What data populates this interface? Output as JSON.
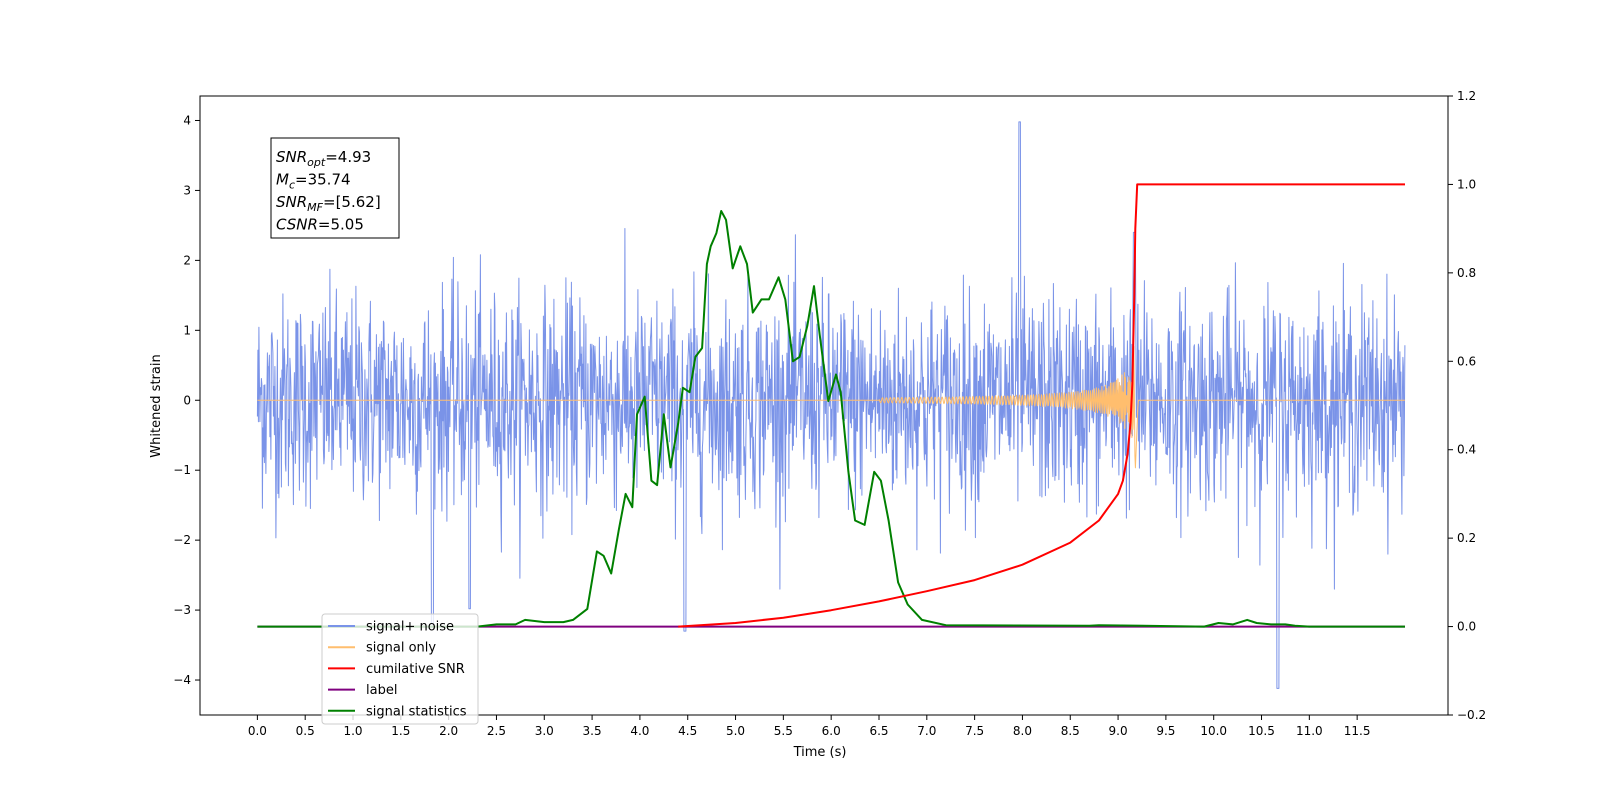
{
  "chart_data": {
    "type": "line",
    "title": "",
    "xlabel": "Time (s)",
    "ylabel": "Whitened strain",
    "y2label": "",
    "xlim": [
      -0.6,
      12.45
    ],
    "ylim": [
      -4.5,
      4.35
    ],
    "y2lim": [
      -0.2,
      1.2
    ],
    "x_ticks": [
      0.0,
      0.5,
      1.0,
      1.5,
      2.0,
      2.5,
      3.0,
      3.5,
      4.0,
      4.5,
      5.0,
      5.5,
      6.0,
      6.5,
      7.0,
      7.5,
      8.0,
      8.5,
      9.0,
      9.5,
      10.0,
      10.5,
      11.0,
      11.5
    ],
    "x_tick_labels": [
      "0.0",
      "0.5",
      "1.0",
      "1.5",
      "2.0",
      "2.5",
      "3.0",
      "3.5",
      "4.0",
      "4.5",
      "5.0",
      "5.5",
      "6.0",
      "6.5",
      "7.0",
      "7.5",
      "8.0",
      "8.5",
      "9.0",
      "9.5",
      "10.0",
      "10.5",
      "11.0",
      "11.5"
    ],
    "y_ticks": [
      -4,
      -3,
      -2,
      -1,
      0,
      1,
      2,
      3,
      4
    ],
    "y_tick_labels": [
      "−4",
      "−3",
      "−2",
      "−1",
      "0",
      "1",
      "2",
      "3",
      "4"
    ],
    "y2_ticks": [
      -0.2,
      0.0,
      0.2,
      0.4,
      0.6,
      0.8,
      1.0,
      1.2
    ],
    "y2_tick_labels": [
      "−0.2",
      "0.0",
      "0.2",
      "0.4",
      "0.6",
      "0.8",
      "1.0",
      "1.2"
    ],
    "grid": false,
    "legend_position": "lower-left",
    "legend": [
      {
        "label": "signal+ noise",
        "color": "#7a93e8"
      },
      {
        "label": "signal only",
        "color": "#ffbe6e"
      },
      {
        "label": "cumilative SNR",
        "color": "#ff0000"
      },
      {
        "label": "label",
        "color": "#7f007f"
      },
      {
        "label": "signal statistics",
        "color": "#008000"
      }
    ],
    "annotation": {
      "lines": [
        {
          "symbol": "SNR",
          "sub": "opt",
          "value": "=4.93"
        },
        {
          "symbol": "M",
          "sub": "c",
          "value": "=35.74"
        },
        {
          "symbol": "SNR",
          "sub": "MF",
          "value": "=[5.62]"
        },
        {
          "symbol": "CSNR",
          "sub": "",
          "value": "=5.05"
        }
      ]
    },
    "series": [
      {
        "name": "signal+ noise",
        "axis": "left",
        "color": "#7a93e8",
        "description_of_noise": "",
        "t_start": 0.0,
        "t_end": 12.0,
        "amplitude_std": 0.75,
        "spikes": [
          [
            7.97,
            3.98
          ],
          [
            10.67,
            -4.12
          ],
          [
            4.47,
            -3.3
          ],
          [
            1.83,
            -3.2
          ],
          [
            2.22,
            -2.98
          ],
          [
            9.17,
            2.4
          ]
        ]
      },
      {
        "name": "signal only",
        "axis": "left",
        "color": "#ffbe6e",
        "chirp_start": 6.5,
        "merger": 9.18,
        "peak_amplitude": 0.9
      },
      {
        "name": "cumilative SNR",
        "axis": "right",
        "color": "#ff0000",
        "x": [
          4.4,
          5.0,
          5.5,
          6.0,
          6.5,
          7.0,
          7.5,
          8.0,
          8.5,
          8.8,
          9.0,
          9.05,
          9.1,
          9.13,
          9.15,
          9.17,
          9.18,
          9.2,
          12.0
        ],
        "y": [
          0.0,
          0.008,
          0.02,
          0.037,
          0.057,
          0.08,
          0.105,
          0.14,
          0.19,
          0.24,
          0.3,
          0.33,
          0.39,
          0.46,
          0.55,
          0.75,
          0.9,
          1.0,
          1.0
        ]
      },
      {
        "name": "label",
        "axis": "right",
        "color": "#7f007f",
        "x": [
          0.0,
          12.0
        ],
        "y": [
          0.0,
          0.0
        ]
      },
      {
        "name": "signal statistics",
        "axis": "right",
        "color": "#008000",
        "x": [
          0.0,
          2.1,
          2.3,
          2.5,
          2.7,
          2.8,
          3.0,
          3.2,
          3.3,
          3.45,
          3.55,
          3.62,
          3.7,
          3.78,
          3.85,
          3.92,
          3.97,
          4.05,
          4.12,
          4.18,
          4.25,
          4.32,
          4.4,
          4.45,
          4.52,
          4.58,
          4.65,
          4.7,
          4.74,
          4.8,
          4.85,
          4.9,
          4.97,
          5.05,
          5.12,
          5.18,
          5.27,
          5.35,
          5.45,
          5.52,
          5.6,
          5.67,
          5.75,
          5.82,
          5.88,
          5.97,
          6.05,
          6.1,
          6.18,
          6.25,
          6.35,
          6.45,
          6.52,
          6.6,
          6.7,
          6.8,
          6.95,
          7.2,
          8.7,
          8.8,
          9.9,
          10.05,
          10.2,
          10.35,
          10.45,
          10.6,
          10.75,
          10.85,
          11.0,
          12.0
        ],
        "y": [
          0.0,
          0.0,
          0.0,
          0.005,
          0.005,
          0.015,
          0.01,
          0.01,
          0.015,
          0.04,
          0.17,
          0.16,
          0.12,
          0.22,
          0.3,
          0.27,
          0.48,
          0.52,
          0.33,
          0.32,
          0.48,
          0.36,
          0.46,
          0.54,
          0.53,
          0.61,
          0.63,
          0.82,
          0.86,
          0.89,
          0.94,
          0.92,
          0.81,
          0.86,
          0.82,
          0.71,
          0.74,
          0.74,
          0.79,
          0.74,
          0.6,
          0.61,
          0.68,
          0.77,
          0.66,
          0.51,
          0.57,
          0.53,
          0.35,
          0.24,
          0.23,
          0.35,
          0.33,
          0.24,
          0.1,
          0.05,
          0.015,
          0.003,
          0.002,
          0.003,
          0.0,
          0.008,
          0.005,
          0.015,
          0.008,
          0.005,
          0.005,
          0.002,
          0.0,
          0.0
        ]
      }
    ]
  }
}
